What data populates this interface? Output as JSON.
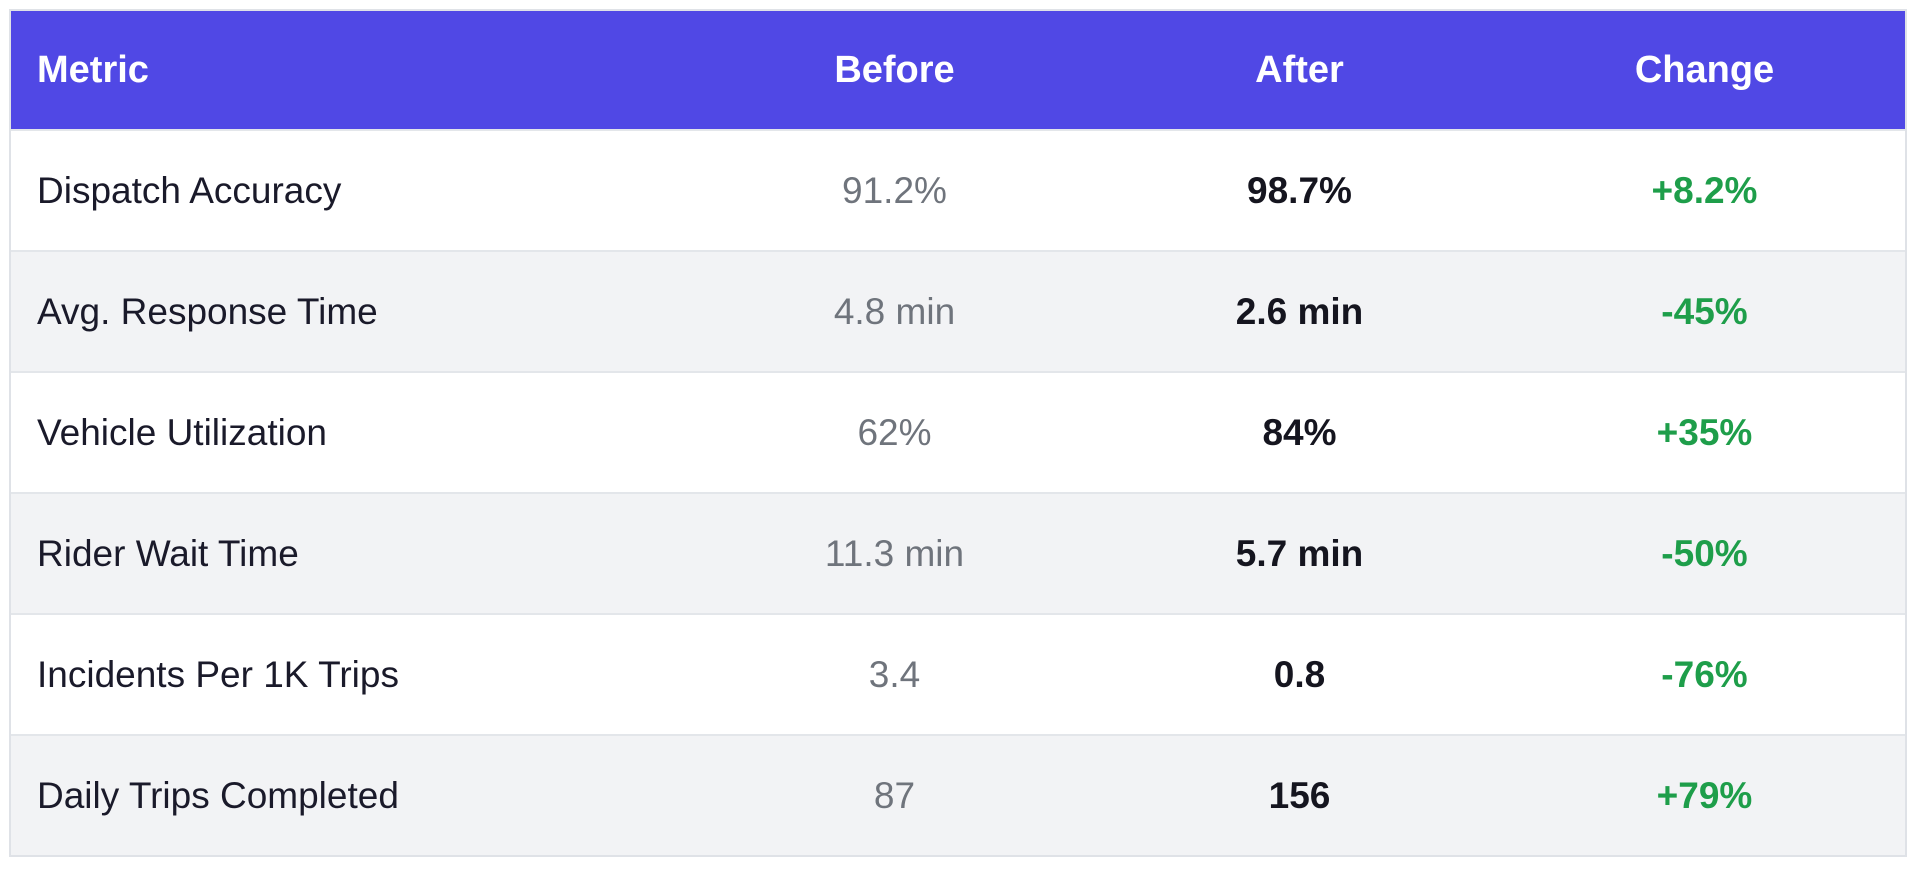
{
  "colors": {
    "header_bg": "#5048e5",
    "row_bg_odd": "#ffffff",
    "row_bg_even": "#f2f3f5",
    "positive": "#1e9e4a"
  },
  "table": {
    "headers": {
      "metric": "Metric",
      "before": "Before",
      "after": "After",
      "change": "Change"
    },
    "rows": [
      {
        "metric": "Dispatch Accuracy",
        "before": "91.2%",
        "after": "98.7%",
        "change": "+8.2%"
      },
      {
        "metric": "Avg. Response Time",
        "before": "4.8 min",
        "after": "2.6 min",
        "change": "-45%"
      },
      {
        "metric": "Vehicle Utilization",
        "before": "62%",
        "after": "84%",
        "change": "+35%"
      },
      {
        "metric": "Rider Wait Time",
        "before": "11.3 min",
        "after": "5.7 min",
        "change": "-50%"
      },
      {
        "metric": "Incidents Per 1K Trips",
        "before": "3.4",
        "after": "0.8",
        "change": "-76%"
      },
      {
        "metric": "Daily Trips Completed",
        "before": "87",
        "after": "156",
        "change": "+79%"
      }
    ]
  }
}
